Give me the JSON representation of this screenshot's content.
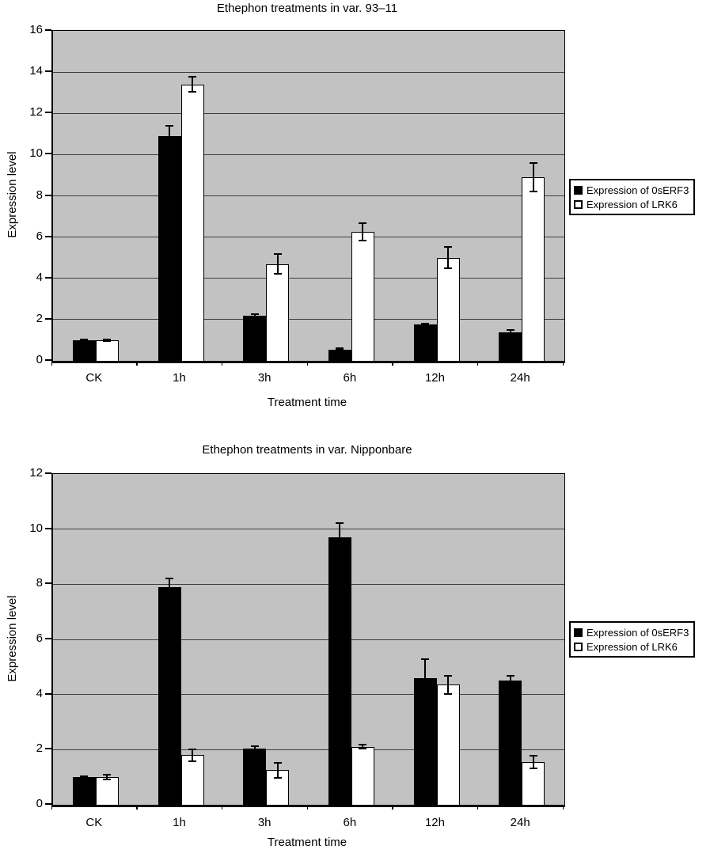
{
  "figure": {
    "colors": {
      "plot_background": "#c2c2c2",
      "gridline": "#3d3d3d",
      "axis": "#000000",
      "page_background": "#ffffff"
    }
  },
  "chart_data": [
    {
      "type": "bar",
      "title": "Ethephon treatments in var. 93–11",
      "xlabel": "Treatment time",
      "ylabel": "Expression level",
      "categories": [
        "CK",
        "1h",
        "3h",
        "6h",
        "12h",
        "24h"
      ],
      "ylim": [
        0,
        16
      ],
      "ytick_step": 2,
      "grid": true,
      "legend_position": "right",
      "error_bars": true,
      "series": [
        {
          "name": "Expression of 0sERF3",
          "color": "#000000",
          "values": [
            1.0,
            10.9,
            2.2,
            0.55,
            1.75,
            1.4
          ],
          "errors": [
            0.07,
            0.55,
            0.1,
            0.06,
            0.06,
            0.12
          ]
        },
        {
          "name": "Expression of LRK6",
          "color": "#ffffff",
          "values": [
            1.0,
            13.4,
            4.7,
            6.25,
            5.0,
            8.9
          ],
          "errors": [
            0.06,
            0.4,
            0.5,
            0.45,
            0.55,
            0.72
          ]
        }
      ]
    },
    {
      "type": "bar",
      "title": "Ethephon treatments in var. Nipponbare",
      "xlabel": "Treatment time",
      "ylabel": "Expression level",
      "categories": [
        "CK",
        "1h",
        "3h",
        "6h",
        "12h",
        "24h"
      ],
      "ylim": [
        0,
        12
      ],
      "ytick_step": 2,
      "grid": true,
      "legend_position": "right",
      "error_bars": true,
      "series": [
        {
          "name": "Expression of 0sERF3",
          "color": "#000000",
          "values": [
            1.0,
            7.9,
            2.05,
            9.7,
            4.6,
            4.5
          ],
          "errors": [
            0.05,
            0.33,
            0.1,
            0.55,
            0.7,
            0.2
          ]
        },
        {
          "name": "Expression of LRK6",
          "color": "#ffffff",
          "values": [
            1.0,
            1.8,
            1.25,
            2.1,
            4.35,
            1.55
          ],
          "errors": [
            0.12,
            0.25,
            0.3,
            0.1,
            0.35,
            0.25
          ]
        }
      ]
    }
  ]
}
